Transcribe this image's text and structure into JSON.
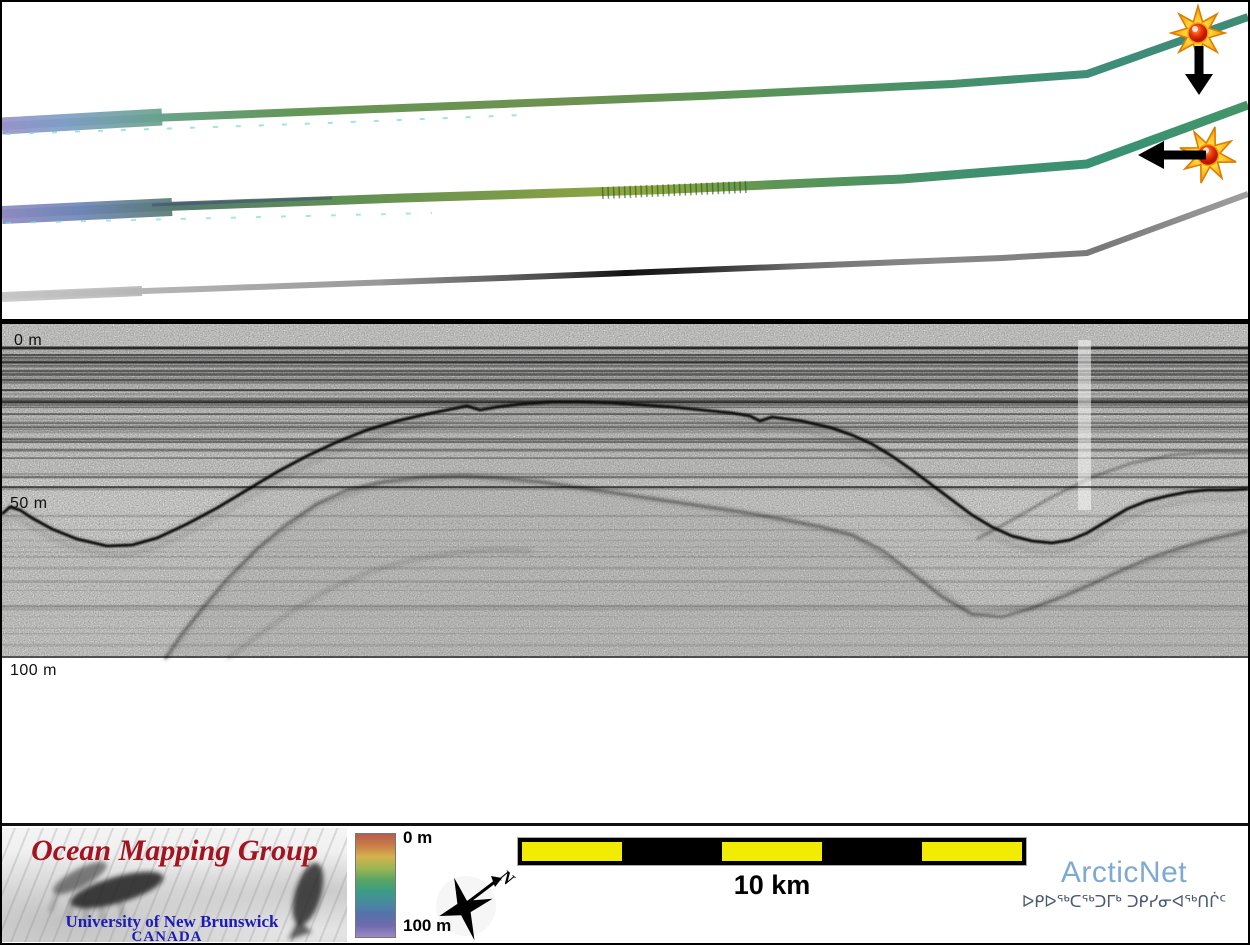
{
  "swath_panel": {
    "description": "plan-view multibeam swath tracks",
    "tracks": [
      {
        "id": "g1",
        "name": "swath-track-1",
        "stops": [
          [
            0,
            "#9693c8"
          ],
          [
            0.05,
            "#7e9ec6"
          ],
          [
            0.13,
            "#68a28a"
          ],
          [
            0.24,
            "#649656"
          ],
          [
            0.45,
            "#6e9150"
          ],
          [
            0.6,
            "#5b9358"
          ],
          [
            0.76,
            "#46906c"
          ],
          [
            0.9,
            "#3d8d7a"
          ],
          [
            1,
            "#3f8b74"
          ]
        ]
      },
      {
        "id": "g2",
        "name": "swath-track-2",
        "stops": [
          [
            0,
            "#8d8ac0"
          ],
          [
            0.06,
            "#6f86b8"
          ],
          [
            0.14,
            "#567a70"
          ],
          [
            0.27,
            "#5f8f55"
          ],
          [
            0.42,
            "#7e9c48"
          ],
          [
            0.52,
            "#93a83e"
          ],
          [
            0.62,
            "#5d9455"
          ],
          [
            0.78,
            "#3f9070"
          ],
          [
            0.9,
            "#389273"
          ],
          [
            1,
            "#459468"
          ]
        ]
      },
      {
        "id": "g3",
        "name": "swath-track-3",
        "stops": [
          [
            0,
            "#c6c6c6"
          ],
          [
            0.3,
            "#9a9a9a"
          ],
          [
            0.44,
            "#4a4a4a"
          ],
          [
            0.5,
            "#101010"
          ],
          [
            0.56,
            "#2a2a2a"
          ],
          [
            0.64,
            "#707070"
          ],
          [
            0.75,
            "#8a8a8a"
          ],
          [
            0.88,
            "#787878"
          ],
          [
            1,
            "#9f9f9f"
          ]
        ]
      }
    ],
    "markers": {
      "star_fill_outer": "#ffe24a",
      "star_fill_inner": "#ff9000",
      "star_stroke": "#db7e00",
      "ball_color": "#d92500",
      "arrow_color": "#000000"
    }
  },
  "profile_panel": {
    "labels": {
      "zero": "0 m",
      "fifty": "50 m",
      "hundred": "100 m"
    }
  },
  "footer": {
    "omg": {
      "title": "Ocean Mapping Group",
      "university": "University of New Brunswick",
      "country": "CANADA",
      "title_color": "#a31320",
      "text_color": "#1c1cb5"
    },
    "colorbar": {
      "top": "0 m",
      "bottom": "100 m",
      "stops": [
        "#b85c4e",
        "#c97d47",
        "#d4b34f",
        "#9cb653",
        "#5aa562",
        "#3b9d85",
        "#47899f",
        "#5672aa",
        "#6f6bae",
        "#9c89c4"
      ]
    },
    "compass": {
      "label": "N"
    },
    "scalebar": {
      "label": "10 km",
      "yellow": "#f2ec00",
      "pattern": [
        "yellow",
        "black",
        "yellow",
        "black",
        "yellow"
      ]
    },
    "arcticnet": {
      "name": "ArcticNet",
      "color": "#7fa9d2",
      "tagline": "ᐅᑭᐅᖅᑕᖅᑐᒥᒃ ᑐᑭᓯᓂᐊᖅᑎᒌᑦ",
      "tagline_color": "#4a5872"
    }
  }
}
